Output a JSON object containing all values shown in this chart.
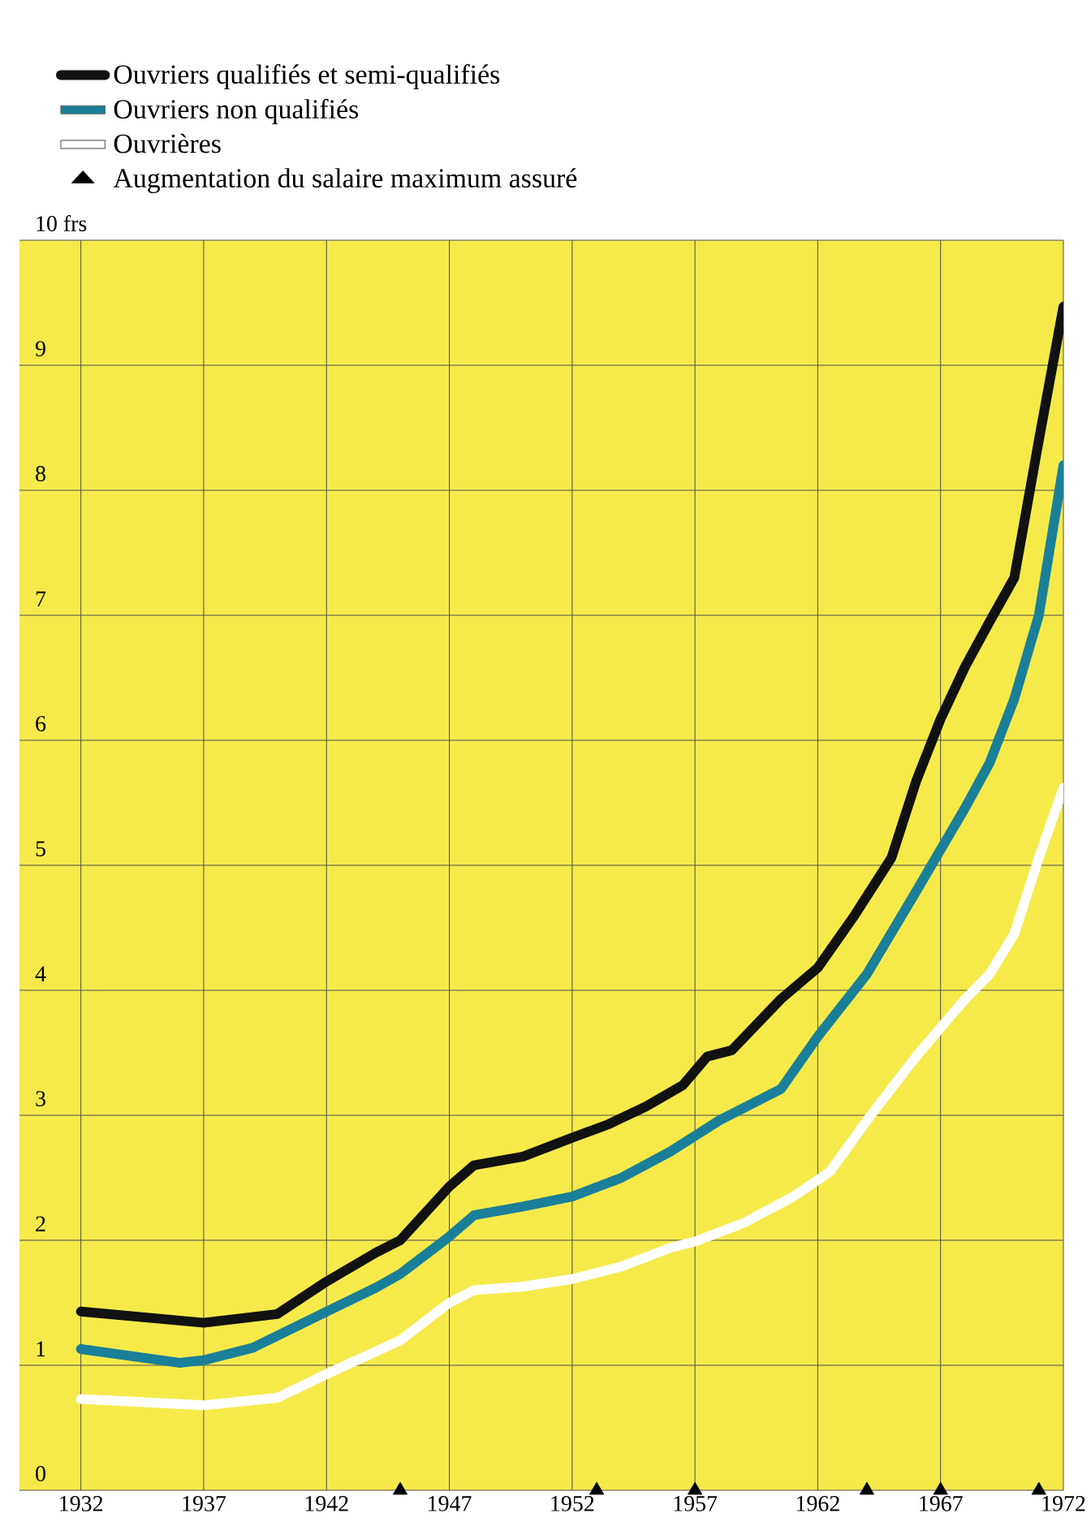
{
  "chart_data": {
    "type": "line",
    "ylabel": null,
    "xlim": [
      1929.5,
      1972
    ],
    "ylim": [
      0,
      10
    ],
    "xticks": [
      1932,
      1937,
      1942,
      1947,
      1952,
      1957,
      1962,
      1967,
      1972
    ],
    "yticks": [
      0,
      1,
      2,
      3,
      4,
      5,
      6,
      7,
      8,
      9,
      {
        "value": 10,
        "label": "10 frs"
      }
    ],
    "grid": true,
    "legend": "top",
    "series": [
      {
        "name": "Ouvriers qualifiés et semi-qualifiés",
        "color": "#111111",
        "marker": "none",
        "x": [
          1932,
          1937,
          1940,
          1942,
          1944,
          1945,
          1947,
          1948,
          1950,
          1952,
          1953.5,
          1955,
          1956.5,
          1957.5,
          1958.5,
          1960.5,
          1962,
          1963.5,
          1965,
          1966,
          1967,
          1968,
          1969,
          1970,
          1971,
          1972
        ],
        "values": [
          1.43,
          1.34,
          1.41,
          1.67,
          1.9,
          2.0,
          2.43,
          2.6,
          2.67,
          2.82,
          2.93,
          3.07,
          3.24,
          3.47,
          3.52,
          3.93,
          4.18,
          4.6,
          5.06,
          5.67,
          6.17,
          6.59,
          6.95,
          7.3,
          8.4,
          9.47
        ]
      },
      {
        "name": "Ouvriers non qualifiés",
        "color": "#1a7f99",
        "marker": "none",
        "x": [
          1932,
          1936,
          1937,
          1939,
          1942,
          1944,
          1945,
          1947,
          1948,
          1950,
          1952,
          1954,
          1956,
          1958,
          1960.5,
          1962,
          1964,
          1966,
          1968,
          1969,
          1970,
          1971,
          1972
        ],
        "values": [
          1.13,
          1.02,
          1.04,
          1.14,
          1.43,
          1.62,
          1.73,
          2.03,
          2.2,
          2.27,
          2.35,
          2.5,
          2.71,
          2.96,
          3.21,
          3.63,
          4.13,
          4.79,
          5.46,
          5.82,
          6.33,
          7.0,
          8.2
        ]
      },
      {
        "name": "Ouvrières",
        "color": "#ffffff",
        "marker": "none",
        "x": [
          1932,
          1937,
          1940,
          1942,
          1945,
          1947,
          1948,
          1950,
          1952,
          1954,
          1956,
          1957,
          1959,
          1961,
          1962.5,
          1964,
          1966,
          1968,
          1969,
          1970,
          1971,
          1972
        ],
        "values": [
          0.73,
          0.68,
          0.74,
          0.93,
          1.2,
          1.5,
          1.6,
          1.63,
          1.69,
          1.79,
          1.94,
          1.99,
          2.14,
          2.35,
          2.55,
          2.96,
          3.47,
          3.93,
          4.13,
          4.45,
          5.06,
          5.62
        ]
      },
      {
        "name": "Augmentation du salaire maximum assuré",
        "type": "scatter",
        "color": "#000000",
        "marker": "triangle",
        "x": [
          1945,
          1953,
          1957,
          1964,
          1967,
          1971
        ],
        "values": [
          0,
          0,
          0,
          0,
          0,
          0
        ]
      }
    ]
  }
}
